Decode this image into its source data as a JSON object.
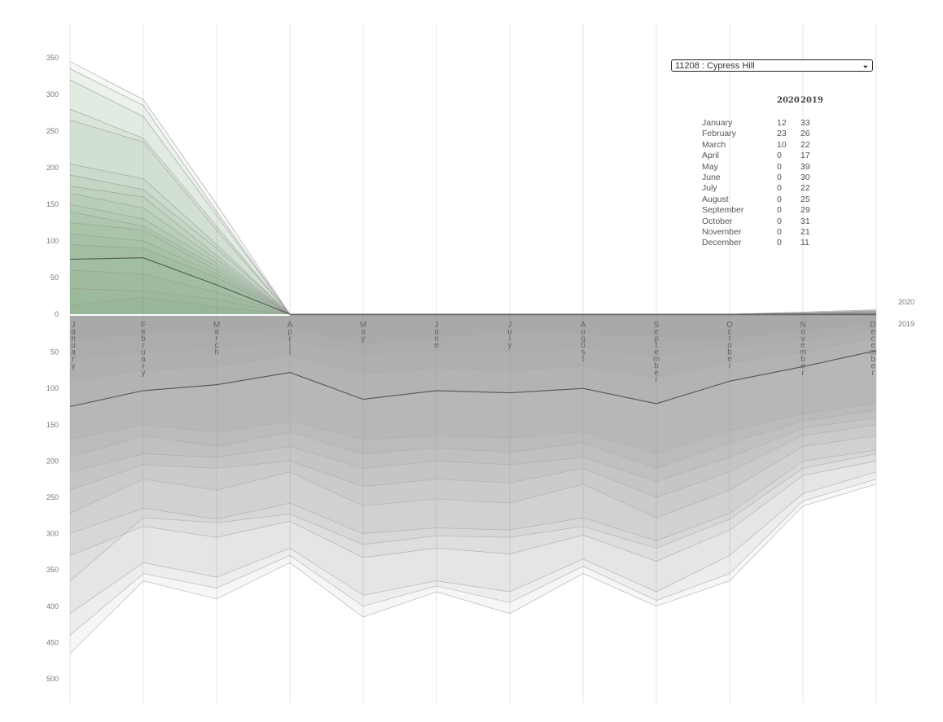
{
  "selector": {
    "value": "11208 : Cypress Hill"
  },
  "table": {
    "headers": [
      "",
      "2020",
      "2019"
    ],
    "rows": [
      {
        "month": "January",
        "y2020": "12",
        "y2019": "33"
      },
      {
        "month": "February",
        "y2020": "23",
        "y2019": "26"
      },
      {
        "month": "March",
        "y2020": "10",
        "y2019": "22"
      },
      {
        "month": "April",
        "y2020": "0",
        "y2019": "17"
      },
      {
        "month": "May",
        "y2020": "0",
        "y2019": "39"
      },
      {
        "month": "June",
        "y2020": "0",
        "y2019": "30"
      },
      {
        "month": "July",
        "y2020": "0",
        "y2019": "22"
      },
      {
        "month": "August",
        "y2020": "0",
        "y2019": "25"
      },
      {
        "month": "September",
        "y2020": "0",
        "y2019": "29"
      },
      {
        "month": "October",
        "y2020": "0",
        "y2019": "31"
      },
      {
        "month": "November",
        "y2020": "0",
        "y2019": "21"
      },
      {
        "month": "December",
        "y2020": "0",
        "y2019": "11"
      }
    ]
  },
  "chart_data": {
    "type": "area",
    "categories": [
      "January",
      "February",
      "March",
      "April",
      "May",
      "June",
      "July",
      "August",
      "September",
      "October",
      "November",
      "December"
    ],
    "year_labels": [
      "2020",
      "2019"
    ],
    "y_ticks_top": [
      "350",
      "300",
      "250",
      "200",
      "150",
      "100",
      "50",
      "0"
    ],
    "y_ticks_bottom": [
      "50",
      "100",
      "150",
      "200",
      "250",
      "300",
      "350",
      "400",
      "450",
      "500"
    ],
    "ylim_top": [
      0,
      350
    ],
    "ylim_bottom": [
      0,
      500
    ],
    "highlight": {
      "y2020": [
        75,
        77,
        40,
        0,
        0,
        0,
        0,
        0,
        0,
        0,
        0,
        0
      ],
      "y2019": [
        125,
        103,
        95,
        78,
        115,
        103,
        106,
        100,
        121,
        90,
        70,
        48
      ]
    },
    "series_2020": [
      [
        345,
        293,
        150,
        0,
        0,
        0,
        0,
        0,
        0,
        0,
        3,
        6
      ],
      [
        335,
        285,
        140,
        0,
        0,
        0,
        0,
        0,
        0,
        0,
        2,
        5
      ],
      [
        320,
        270,
        135,
        0,
        0,
        0,
        0,
        0,
        0,
        0,
        2,
        4
      ],
      [
        280,
        240,
        120,
        0,
        0,
        0,
        0,
        0,
        0,
        0,
        1,
        4
      ],
      [
        265,
        235,
        115,
        0,
        0,
        0,
        0,
        0,
        0,
        0,
        1,
        3
      ],
      [
        205,
        185,
        95,
        0,
        0,
        0,
        0,
        0,
        0,
        0,
        1,
        3
      ],
      [
        190,
        170,
        90,
        0,
        0,
        0,
        0,
        0,
        0,
        0,
        1,
        2
      ],
      [
        175,
        160,
        80,
        0,
        0,
        0,
        0,
        0,
        0,
        0,
        0,
        2
      ],
      [
        165,
        145,
        75,
        0,
        0,
        0,
        0,
        0,
        0,
        0,
        0,
        2
      ],
      [
        150,
        130,
        70,
        0,
        0,
        0,
        0,
        0,
        0,
        0,
        0,
        1
      ],
      [
        140,
        120,
        65,
        0,
        0,
        0,
        0,
        0,
        0,
        0,
        0,
        1
      ],
      [
        125,
        115,
        60,
        0,
        0,
        0,
        0,
        0,
        0,
        0,
        0,
        1
      ],
      [
        110,
        100,
        55,
        0,
        0,
        0,
        0,
        0,
        0,
        0,
        0,
        1
      ],
      [
        95,
        90,
        50,
        0,
        0,
        0,
        0,
        0,
        0,
        0,
        0,
        0
      ],
      [
        60,
        55,
        30,
        0,
        0,
        0,
        0,
        0,
        0,
        0,
        0,
        0
      ],
      [
        35,
        32,
        20,
        0,
        0,
        0,
        0,
        0,
        0,
        0,
        0,
        0
      ],
      [
        12,
        23,
        10,
        0,
        0,
        0,
        0,
        0,
        0,
        0,
        0,
        0
      ]
    ],
    "series_2019": [
      [
        465,
        365,
        390,
        340,
        415,
        380,
        410,
        355,
        400,
        365,
        262,
        232
      ],
      [
        440,
        355,
        375,
        330,
        400,
        372,
        395,
        345,
        392,
        355,
        255,
        225
      ],
      [
        410,
        340,
        360,
        320,
        385,
        365,
        380,
        335,
        380,
        330,
        245,
        215
      ],
      [
        365,
        278,
        285,
        273,
        315,
        303,
        305,
        290,
        320,
        280,
        210,
        190
      ],
      [
        330,
        290,
        305,
        283,
        333,
        320,
        328,
        302,
        338,
        295,
        220,
        200
      ],
      [
        300,
        265,
        280,
        258,
        300,
        292,
        295,
        278,
        310,
        272,
        200,
        185
      ],
      [
        272,
        225,
        240,
        215,
        262,
        252,
        258,
        232,
        278,
        240,
        180,
        165
      ],
      [
        240,
        205,
        210,
        200,
        235,
        225,
        230,
        210,
        250,
        215,
        165,
        150
      ],
      [
        215,
        190,
        195,
        180,
        210,
        200,
        205,
        195,
        228,
        195,
        155,
        140
      ],
      [
        195,
        165,
        180,
        160,
        190,
        182,
        188,
        175,
        210,
        175,
        145,
        130
      ],
      [
        170,
        150,
        160,
        145,
        170,
        165,
        168,
        160,
        190,
        158,
        135,
        120
      ],
      [
        125,
        103,
        95,
        78,
        115,
        103,
        106,
        100,
        121,
        90,
        70,
        48
      ],
      [
        90,
        75,
        70,
        55,
        80,
        72,
        75,
        70,
        85,
        65,
        50,
        30
      ],
      [
        60,
        50,
        45,
        35,
        52,
        48,
        50,
        45,
        55,
        42,
        35,
        20
      ],
      [
        33,
        26,
        22,
        17,
        39,
        30,
        22,
        25,
        29,
        31,
        21,
        11
      ]
    ],
    "grid": true
  }
}
